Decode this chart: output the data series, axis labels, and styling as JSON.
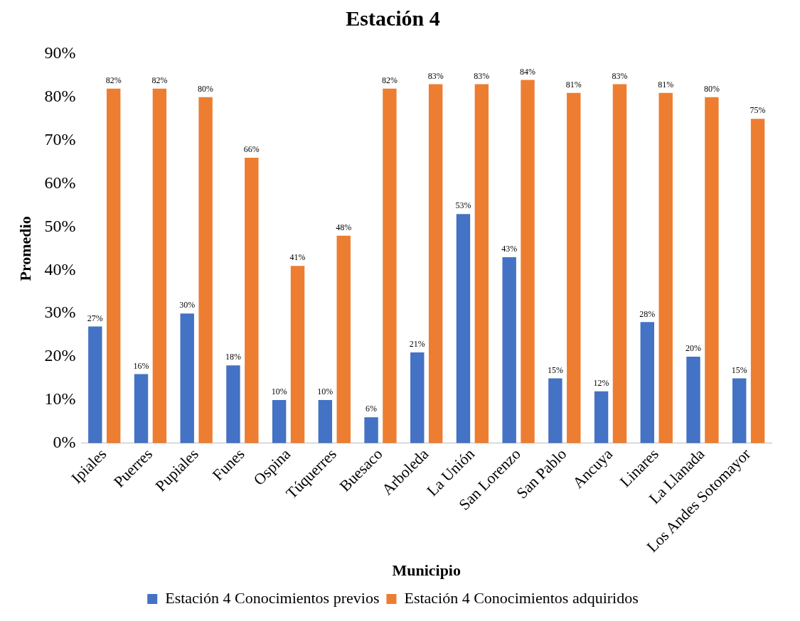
{
  "chart_data": {
    "type": "bar",
    "title": "Estación 4",
    "xlabel": "Municipio",
    "ylabel": "Promedio",
    "categories": [
      "Ipiales",
      "Puerres",
      "Pupiales",
      "Funes",
      "Ospina",
      "Túquerres",
      "Buesaco",
      "Arboleda",
      "La Unión",
      "San Lorenzo",
      "San Pablo",
      "Ancuya",
      "Linares",
      "La Llanada",
      "Los Andes Sotomayor"
    ],
    "series": [
      {
        "name": "Estación 4 Conocimientos previos",
        "color": "#4472c4",
        "values": [
          27,
          16,
          30,
          18,
          10,
          10,
          6,
          21,
          53,
          43,
          15,
          12,
          28,
          20,
          15
        ],
        "value_labels": [
          "27%",
          "16%",
          "30%",
          "18%",
          "10%",
          "10%",
          "6%",
          "21%",
          "53%",
          "43%",
          "15%",
          "12%",
          "28%",
          "20%",
          "15%"
        ]
      },
      {
        "name": "Estación 4 Conocimientos adquiridos",
        "color": "#ed7d31",
        "values": [
          82,
          82,
          80,
          66,
          41,
          48,
          82,
          83,
          83,
          84,
          81,
          83,
          81,
          80,
          75
        ],
        "value_labels": [
          "82%",
          "82%",
          "80%",
          "66%",
          "41%",
          "48%",
          "82%",
          "83%",
          "83%",
          "84%",
          "81%",
          "83%",
          "81%",
          "80%",
          "75%"
        ]
      }
    ],
    "ylim": [
      0,
      90
    ],
    "yticks": [
      {
        "value": 0,
        "label": "0%"
      },
      {
        "value": 10,
        "label": "10%"
      },
      {
        "value": 20,
        "label": "20%"
      },
      {
        "value": 30,
        "label": "30%"
      },
      {
        "value": 40,
        "label": "40%"
      },
      {
        "value": 50,
        "label": "50%"
      },
      {
        "value": 60,
        "label": "60%"
      },
      {
        "value": 70,
        "label": "70%"
      },
      {
        "value": 80,
        "label": "80%"
      },
      {
        "value": 90,
        "label": "90%"
      }
    ],
    "grid": false,
    "legend": "bottom"
  }
}
